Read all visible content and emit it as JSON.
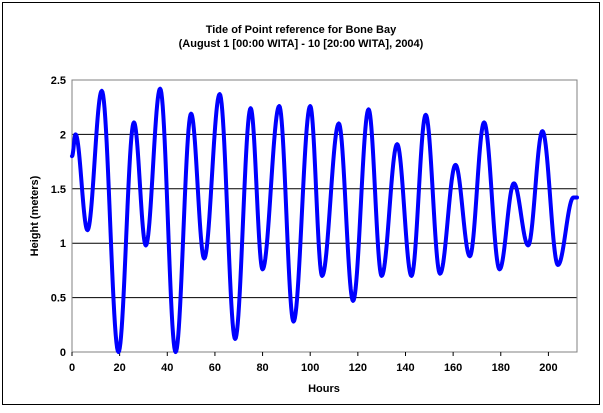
{
  "chart_data": {
    "type": "line",
    "title": "Tide of Point reference for Bone Bay",
    "subtitle": "(August 1 [00:00 WITA] - 10 [20:00 WITA], 2004)",
    "xlabel": "Hours",
    "ylabel": "Height (meters)",
    "xlim": [
      0,
      212
    ],
    "ylim": [
      0,
      2.5
    ],
    "x_ticks": [
      "0",
      "20",
      "40",
      "60",
      "80",
      "100",
      "120",
      "140",
      "160",
      "180",
      "200"
    ],
    "y_ticks": [
      "0",
      "0.5",
      "1",
      "1.5",
      "2",
      "2.5"
    ],
    "grid": "horizontal",
    "legend": "none",
    "line_color": "#0000ff",
    "extrema": [
      {
        "x": 0,
        "y": 1.8
      },
      {
        "x": 1.5,
        "y": 2.0
      },
      {
        "x": 6.5,
        "y": 1.12
      },
      {
        "x": 12.5,
        "y": 2.4
      },
      {
        "x": 19.5,
        "y": 0.0
      },
      {
        "x": 26,
        "y": 2.11
      },
      {
        "x": 31,
        "y": 0.98
      },
      {
        "x": 37,
        "y": 2.42
      },
      {
        "x": 43.5,
        "y": 0.0
      },
      {
        "x": 50,
        "y": 2.19
      },
      {
        "x": 55.5,
        "y": 0.86
      },
      {
        "x": 62,
        "y": 2.37
      },
      {
        "x": 68.5,
        "y": 0.12
      },
      {
        "x": 75,
        "y": 2.24
      },
      {
        "x": 80,
        "y": 0.76
      },
      {
        "x": 87,
        "y": 2.26
      },
      {
        "x": 93,
        "y": 0.28
      },
      {
        "x": 100,
        "y": 2.26
      },
      {
        "x": 105,
        "y": 0.7
      },
      {
        "x": 112,
        "y": 2.1
      },
      {
        "x": 118,
        "y": 0.47
      },
      {
        "x": 124.5,
        "y": 2.23
      },
      {
        "x": 130,
        "y": 0.7
      },
      {
        "x": 136.5,
        "y": 1.91
      },
      {
        "x": 142.5,
        "y": 0.7
      },
      {
        "x": 148.5,
        "y": 2.18
      },
      {
        "x": 154.5,
        "y": 0.72
      },
      {
        "x": 161,
        "y": 1.72
      },
      {
        "x": 167,
        "y": 0.88
      },
      {
        "x": 173,
        "y": 2.11
      },
      {
        "x": 179.5,
        "y": 0.76
      },
      {
        "x": 185.5,
        "y": 1.55
      },
      {
        "x": 191.5,
        "y": 0.98
      },
      {
        "x": 197.5,
        "y": 2.03
      },
      {
        "x": 204,
        "y": 0.8
      },
      {
        "x": 210.5,
        "y": 1.42
      },
      {
        "x": 212,
        "y": 1.42
      }
    ]
  }
}
